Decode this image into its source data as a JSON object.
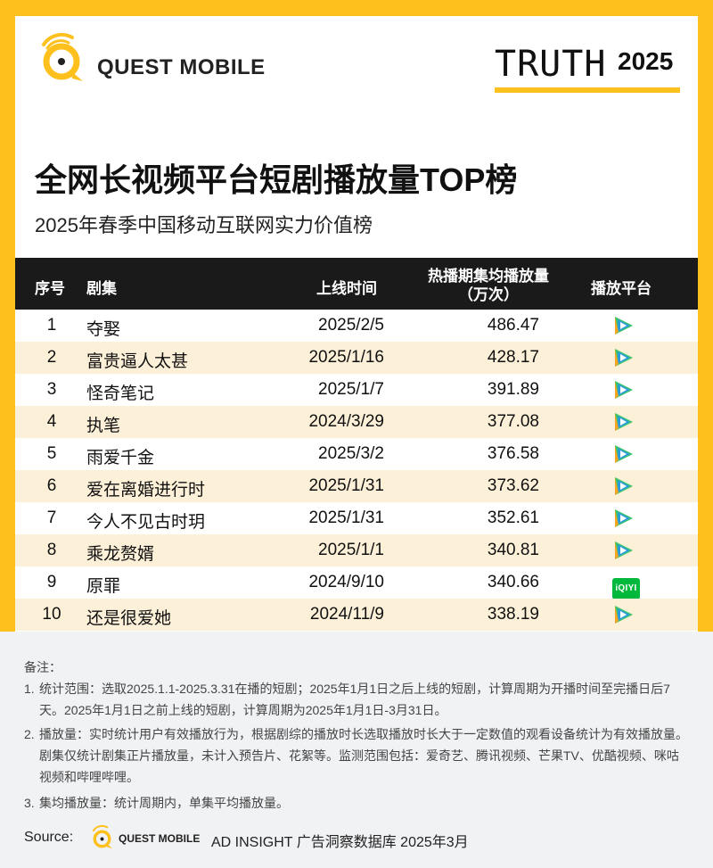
{
  "header": {
    "brand": "QUEST MOBILE",
    "truth_word": "TRUTH",
    "truth_year": "2025"
  },
  "title": "全网长视频平台短剧播放量TOP榜",
  "subtitle": "2025年春季中国移动互联网实力价值榜",
  "chart_data": {
    "type": "table",
    "columns": [
      "序号",
      "剧集",
      "上线时间",
      "热播期集均播放量\n（万次）",
      "播放平台"
    ],
    "rows": [
      {
        "rank": "1",
        "name": "夺娶",
        "date": "2025/2/5",
        "plays": "486.47",
        "platform": "tencent-video-icon"
      },
      {
        "rank": "2",
        "name": "富贵逼人太甚",
        "date": "2025/1/16",
        "plays": "428.17",
        "platform": "tencent-video-icon"
      },
      {
        "rank": "3",
        "name": "怪奇笔记",
        "date": "2025/1/7",
        "plays": "391.89",
        "platform": "tencent-video-icon"
      },
      {
        "rank": "4",
        "name": "执笔",
        "date": "2024/3/29",
        "plays": "377.08",
        "platform": "tencent-video-icon"
      },
      {
        "rank": "5",
        "name": "雨爱千金",
        "date": "2025/3/2",
        "plays": "376.58",
        "platform": "tencent-video-icon"
      },
      {
        "rank": "6",
        "name": "爱在离婚进行时",
        "date": "2025/1/31",
        "plays": "373.62",
        "platform": "tencent-video-icon"
      },
      {
        "rank": "7",
        "name": "今人不见古时玥",
        "date": "2025/1/31",
        "plays": "352.61",
        "platform": "tencent-video-icon"
      },
      {
        "rank": "8",
        "name": "乘龙赘婿",
        "date": "2025/1/1",
        "plays": "340.81",
        "platform": "tencent-video-icon"
      },
      {
        "rank": "9",
        "name": "原罪",
        "date": "2024/9/10",
        "plays": "340.66",
        "platform": "iqiyi-icon"
      },
      {
        "rank": "10",
        "name": "还是很爱她",
        "date": "2024/11/9",
        "plays": "338.19",
        "platform": "tencent-video-icon"
      }
    ]
  },
  "table": {
    "h_rank": "序号",
    "h_name": "剧集",
    "h_date": "上线时间",
    "h_plays_1": "热播期集均播放量",
    "h_plays_2": "（万次）",
    "h_platform": "播放平台",
    "iqiyi_label": "iQIYI"
  },
  "notes": {
    "title": "备注：",
    "items": [
      {
        "num": "1.",
        "text": "统计范围：选取2025.1.1-2025.3.31在播的短剧；2025年1月1日之后上线的短剧，计算周期为开播时间至完播日后7天。2025年1月1日之前上线的短剧，计算周期为2025年1月1日-3月31日。"
      },
      {
        "num": "2.",
        "text": "播放量：实时统计用户有效播放行为，根据剧综的播放时长选取播放时长大于一定数值的观看设备统计为有效播放量。剧集仅统计剧集正片播放量，未计入预告片、花絮等。监测范围包括：爱奇艺、腾讯视频、芒果TV、优酷视频、咪咕视频和哔哩哔哩。"
      },
      {
        "num": "3.",
        "text": "集均播放量：统计周期内，单集平均播放量。"
      }
    ]
  },
  "source": {
    "label": "Source:",
    "brand": "QUEST MOBILE",
    "text": "AD INSIGHT 广告洞察数据库  2025年3月"
  },
  "colors": {
    "brand_yellow": "#fdc01c",
    "header_black": "#1a1a1a",
    "row_alt": "#fdf0d8",
    "tencent_green": "#38c46d",
    "tencent_blue": "#2d9cdb",
    "tencent_orange": "#f5a623",
    "iqiyi_green": "#00b83c"
  }
}
